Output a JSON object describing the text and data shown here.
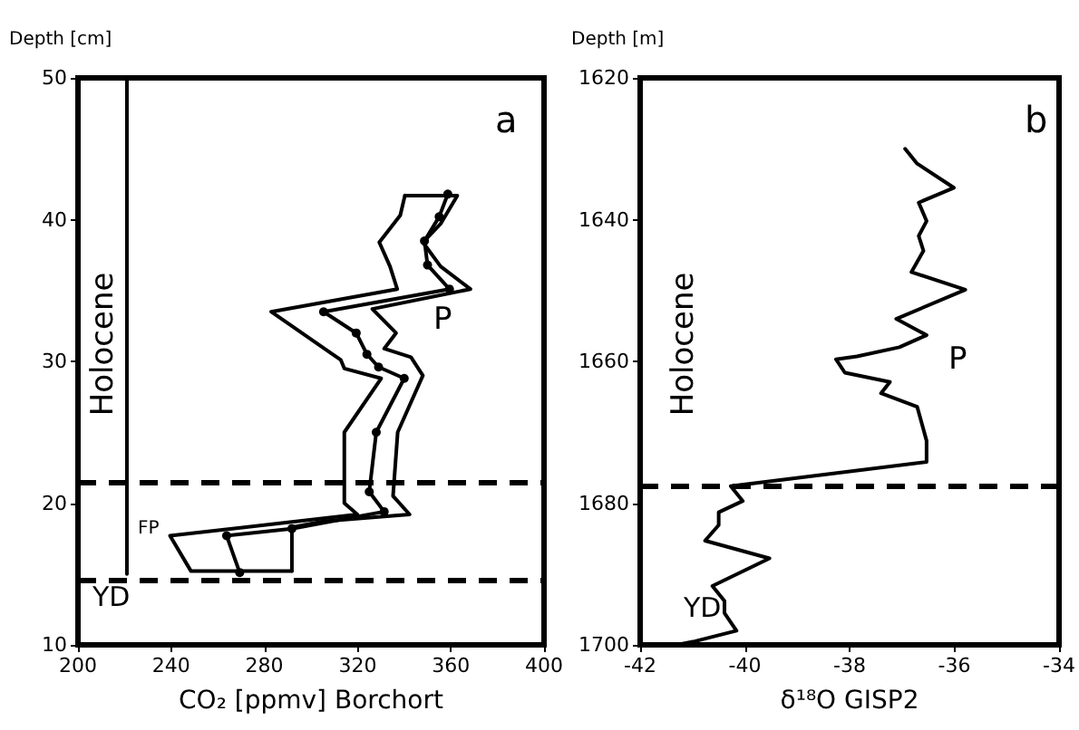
{
  "chart_data": [
    {
      "type": "line",
      "xlabel": "CO₂ [ppmv] Borchort",
      "ylabel": "Depth [cm]",
      "xlim": [
        200,
        400
      ],
      "xticks": [
        200,
        240,
        280,
        320,
        360,
        400
      ],
      "ylim": [
        10,
        50
      ],
      "yticks": [
        10,
        20,
        30,
        40,
        50
      ],
      "grid": false,
      "line_style": "solid",
      "marker": "none",
      "series": [
        {
          "color": "#000000",
          "marker": "circle",
          "x": [
            358.7,
            355,
            348.7,
            350,
            359.4,
            305.4,
            319.4,
            324,
            329,
            340,
            328,
            325,
            331.4,
            291.8,
            263.8,
            269.4
          ],
          "values": [
            41.8,
            40.2,
            38.5,
            36.8,
            35.1,
            33.5,
            32,
            30.5,
            29.6,
            28.8,
            25,
            20.8,
            19.4,
            18.2,
            17.7,
            15.1
          ]
        },
        {
          "color": "#000000",
          "x": [
            340.3,
            338.3,
            329.3,
            333.9,
            337,
            282.9,
            308.4,
            312.8,
            314.3,
            330.1,
            314.3,
            314.3,
            319.9,
            239.5,
            248.5,
            291.8
          ],
          "values": [
            41.7,
            40.3,
            38.4,
            36.7,
            35.1,
            33.5,
            30.6,
            30.1,
            29.5,
            28.8,
            25,
            20,
            19.2,
            17.7,
            15.2,
            15.2
          ]
        },
        {
          "color": "#000000",
          "x": [
            340.3,
            362.8,
            355.6,
            348,
            355.6,
            368.4,
            326.3,
            336.5,
            331.4,
            342.9,
            348,
            337.2,
            335.2,
            342.3,
            304.6,
            291.8,
            291.8
          ],
          "values": [
            41.7,
            41.7,
            39.7,
            38.4,
            36.7,
            35.1,
            33.7,
            32,
            30.9,
            30.3,
            29,
            25,
            20.5,
            19.2,
            18.7,
            18.3,
            15.2
          ]
        },
        {
          "color": "#000000",
          "x": [
            221,
            221
          ],
          "values": [
            15,
            50
          ]
        }
      ],
      "ref_lines": [
        {
          "axis": "y",
          "value": 21.5,
          "color": "#000000",
          "line_style": "dashed"
        },
        {
          "axis": "y",
          "value": 14.6,
          "color": "#000000",
          "line_style": "dashed"
        }
      ],
      "annotations": [
        "a",
        "Holocene",
        "P",
        "FP",
        "YD"
      ]
    },
    {
      "type": "line",
      "xlabel": "δ¹⁸O GISP2",
      "ylabel": "Depth [m]",
      "xlim": [
        -42,
        -34
      ],
      "xticks": [
        -42,
        -40,
        -38,
        -36,
        -34
      ],
      "ylim": [
        1700,
        1620
      ],
      "yticks": [
        1620,
        1640,
        1660,
        1680,
        1700
      ],
      "grid": false,
      "line_style": "solid",
      "marker": "none",
      "series": [
        {
          "color": "#000000",
          "x": [
            -36.94,
            -36.71,
            -36.01,
            -36.68,
            -36.53,
            -36.68,
            -36.59,
            -36.82,
            -35.79,
            -37.11,
            -36.53,
            -37.05,
            -37.86,
            -38.26,
            -38.09,
            -37.23,
            -37.4,
            -36.71,
            -36.53,
            -36.53,
            -40.27,
            -40.04,
            -40.5,
            -40.5,
            -40.76,
            -39.53,
            -40.62,
            -40.39,
            -40.39,
            -40.16,
            -40.96,
            -41.3
          ],
          "values": [
            1630,
            1632.1,
            1635.5,
            1637.6,
            1640.2,
            1642.3,
            1644.4,
            1647.4,
            1649.9,
            1654,
            1656.3,
            1658,
            1659.3,
            1659.7,
            1661.6,
            1662.9,
            1664.5,
            1666.4,
            1671.2,
            1674.2,
            1677.6,
            1679.7,
            1681.3,
            1683.1,
            1685.3,
            1687.8,
            1691.7,
            1693.8,
            1695.5,
            1698,
            1699.5,
            1700
          ]
        }
      ],
      "ref_lines": [
        {
          "axis": "y",
          "value": 1677.6,
          "color": "#000000",
          "line_style": "dashed"
        }
      ],
      "annotations": [
        "b",
        "Holocene",
        "P",
        "YD"
      ]
    }
  ]
}
